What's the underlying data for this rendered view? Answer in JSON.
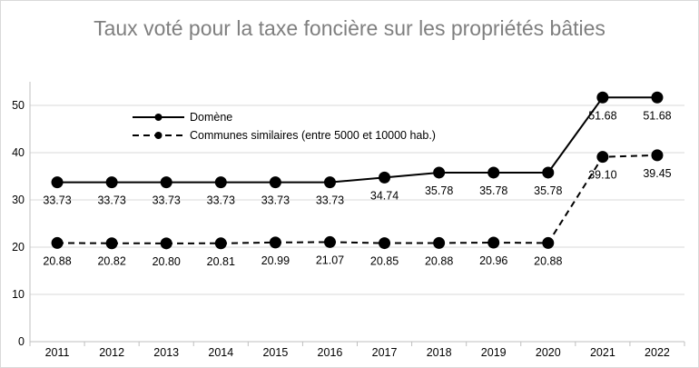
{
  "chart_data": {
    "type": "line",
    "title": "Taux voté pour la taxe foncière sur les propriétés bâties",
    "categories": [
      "2011",
      "2012",
      "2013",
      "2014",
      "2015",
      "2016",
      "2017",
      "2018",
      "2019",
      "2020",
      "2021",
      "2022"
    ],
    "ylim": [
      0,
      55
    ],
    "yticks": [
      0,
      10,
      20,
      30,
      40,
      50
    ],
    "grid": true,
    "legend_position": "top-left",
    "series": [
      {
        "name": "Domène",
        "style": "solid",
        "color": "#000000",
        "values": [
          33.73,
          33.73,
          33.73,
          33.73,
          33.73,
          33.73,
          34.74,
          35.78,
          35.78,
          35.78,
          51.68,
          51.68
        ],
        "labels": [
          "33.73",
          "33.73",
          "33.73",
          "33.73",
          "33.73",
          "33.73",
          "34.74",
          "35.78",
          "35.78",
          "35.78",
          "51.68",
          "51.68"
        ]
      },
      {
        "name": "Communes similaires (entre 5000 et 10000 hab.)",
        "style": "dashed",
        "color": "#000000",
        "values": [
          20.88,
          20.82,
          20.8,
          20.81,
          20.99,
          21.07,
          20.85,
          20.88,
          20.96,
          20.88,
          39.1,
          39.45
        ],
        "labels": [
          "20.88",
          "20.82",
          "20.80",
          "20.81",
          "20.99",
          "21.07",
          "20.85",
          "20.88",
          "20.96",
          "20.88",
          "39.10",
          "39.45"
        ]
      }
    ]
  }
}
